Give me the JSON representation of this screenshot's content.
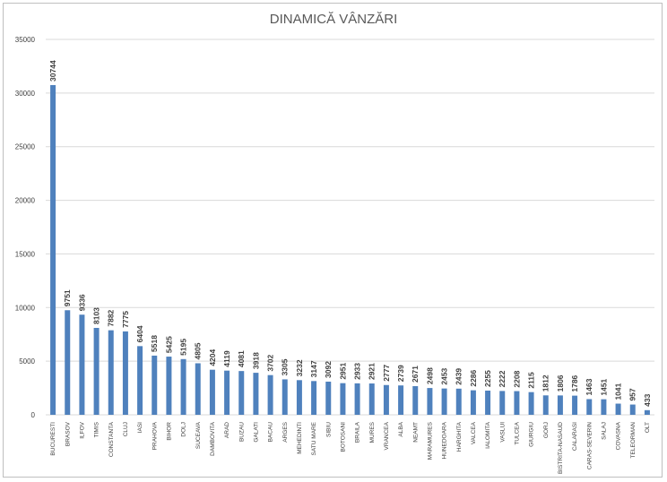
{
  "chart_data": {
    "type": "bar",
    "title": "DINAMICĂ VÂNZĂRI",
    "xlabel": "",
    "ylabel": "",
    "ylim": [
      0,
      35000
    ],
    "yticks": [
      0,
      5000,
      10000,
      15000,
      20000,
      25000,
      30000,
      35000
    ],
    "grid": true,
    "legend": "none",
    "colors": {
      "bar": "#4f81bd"
    },
    "categories": [
      "BUCURESTI",
      "BRASOV",
      "ILFOV",
      "TIMIS",
      "CONSTANTA",
      "CLUJ",
      "IASI",
      "PRAHOVA",
      "BIHOR",
      "DOLJ",
      "SUCEAVA",
      "DAMBOVITA",
      "ARAD",
      "BUZAU",
      "GALATI",
      "BACAU",
      "ARGES",
      "MEHEDINTI",
      "SATU MARE",
      "SIBIU",
      "BOTOSANI",
      "BRAILA",
      "MURES",
      "VRANCEA",
      "ALBA",
      "NEAMT",
      "MARAMURES",
      "HUNEDOARA",
      "HARGHITA",
      "VALCEA",
      "IALOMITA",
      "VASLUI",
      "TULCEA",
      "GIURGIU",
      "GORJ",
      "BISTRITA-NASAUD",
      "CALARASI",
      "CARAS-SEVERIN",
      "SALAJ",
      "COVASNA",
      "TELEORMAN",
      "OLT"
    ],
    "values": [
      30744,
      9751,
      9336,
      8103,
      7882,
      7775,
      6404,
      5518,
      5425,
      5195,
      4805,
      4204,
      4119,
      4081,
      3918,
      3702,
      3305,
      3232,
      3147,
      3092,
      2951,
      2933,
      2921,
      2777,
      2739,
      2671,
      2498,
      2453,
      2439,
      2286,
      2255,
      2222,
      2208,
      2115,
      1812,
      1806,
      1786,
      1463,
      1451,
      1041,
      957,
      433
    ]
  }
}
